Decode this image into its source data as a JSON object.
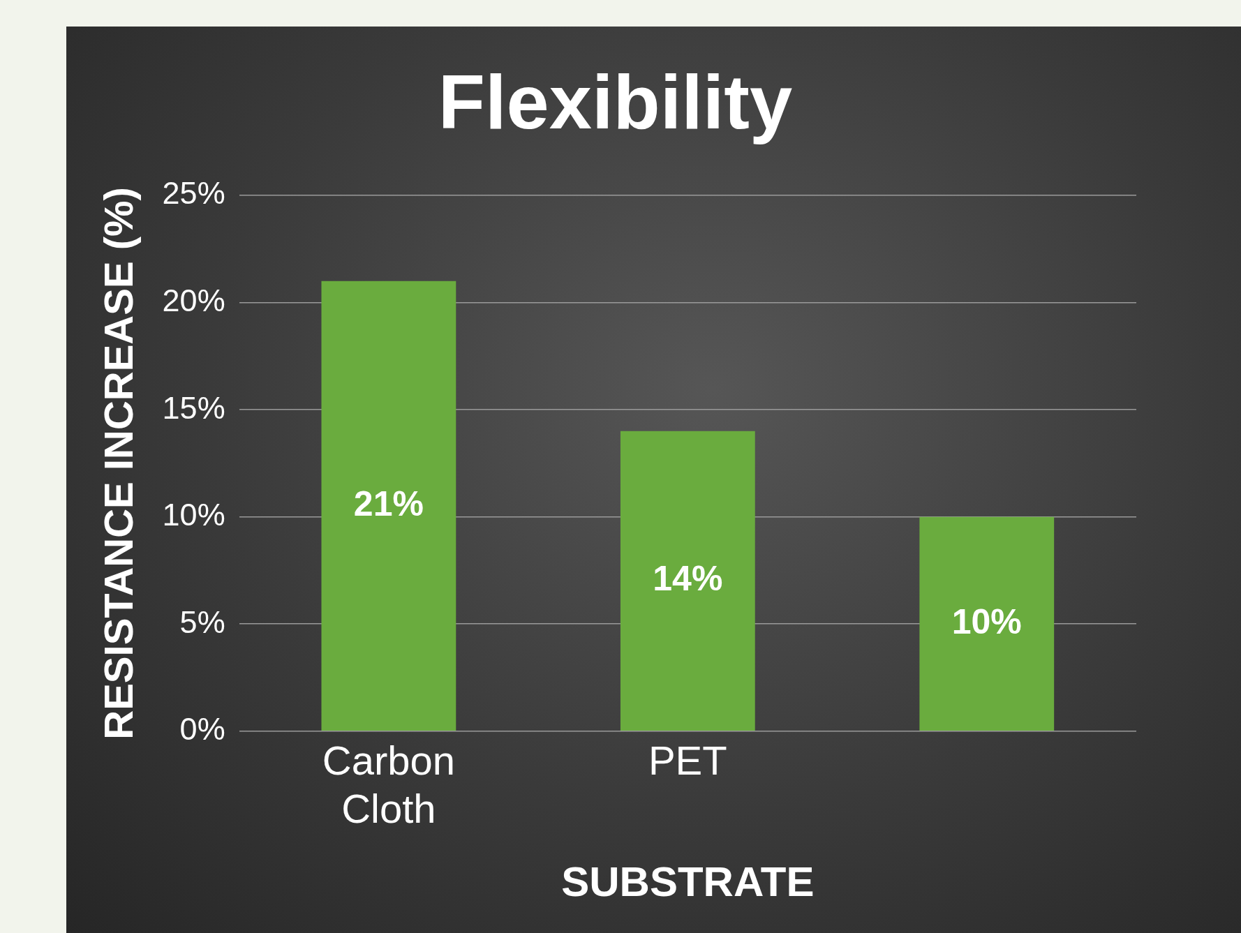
{
  "chart_data": {
    "type": "bar",
    "title": "Flexibility",
    "xlabel": "SUBSTRATE",
    "ylabel": "RESISTANCE INCREASE (%)",
    "categories": [
      "Carbon Cloth",
      "PET",
      null
    ],
    "values": [
      21,
      14,
      10
    ],
    "value_labels": [
      "21%",
      "14%",
      "10%"
    ],
    "color": "#6aac3e",
    "ylim": [
      0,
      25
    ],
    "yticks": [
      {
        "value": 0,
        "label": "0%"
      },
      {
        "value": 5,
        "label": "5%"
      },
      {
        "value": 10,
        "label": "10%"
      },
      {
        "value": 15,
        "label": "15%"
      },
      {
        "value": 20,
        "label": "20%"
      },
      {
        "value": 25,
        "label": "25%"
      }
    ],
    "grid": "y",
    "legend": false
  }
}
